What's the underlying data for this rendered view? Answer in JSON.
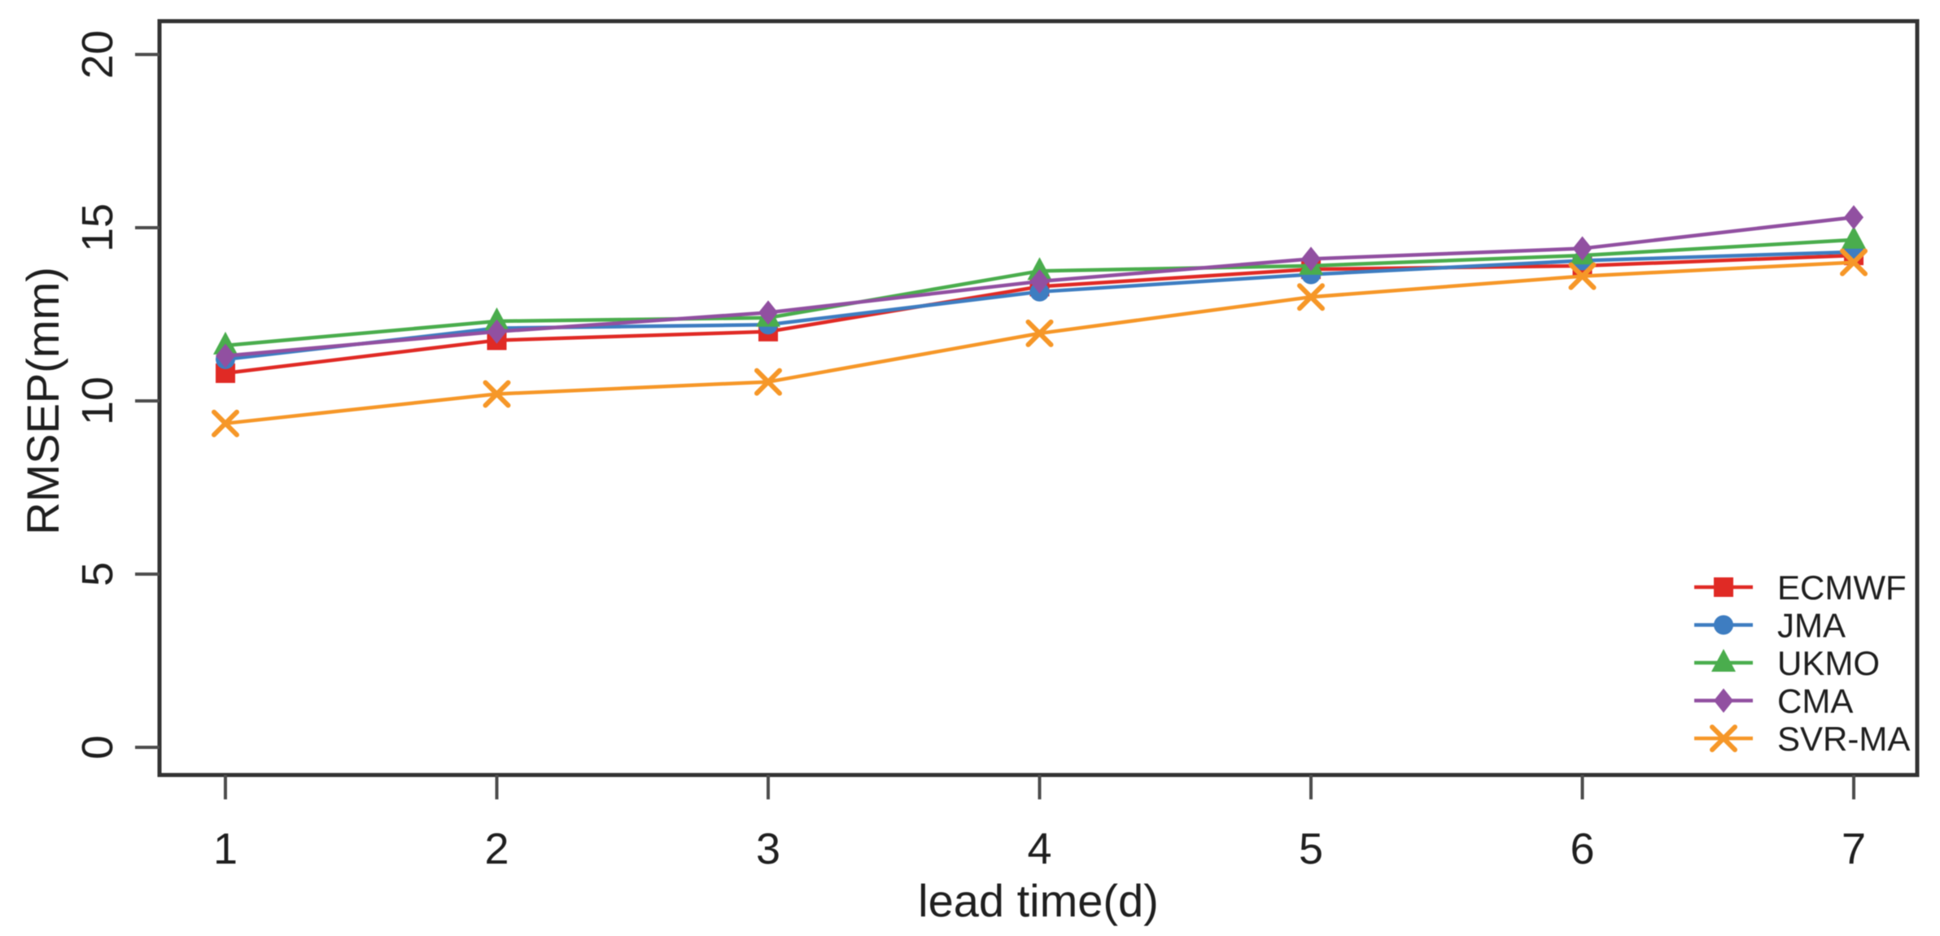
{
  "figure": {
    "background": "#ffffff",
    "axis_color": "#333333",
    "tick_color": "#4d4d4d",
    "text_color": "#1f1f1f"
  },
  "chart_data": {
    "type": "line",
    "title": "",
    "xlabel": "lead time(d)",
    "ylabel": "RMSEP(mm)",
    "x": [
      1,
      2,
      3,
      4,
      5,
      6,
      7
    ],
    "xtick_labels": [
      "1",
      "2",
      "3",
      "4",
      "5",
      "6",
      "7"
    ],
    "yticks": [
      0,
      5,
      10,
      15,
      20
    ],
    "ytick_labels": [
      "0",
      "5",
      "10",
      "15",
      "20"
    ],
    "xlim": [
      0.76,
      7.24
    ],
    "ylim": [
      -0.8,
      20.9
    ],
    "grid": false,
    "legend_position": "bottom-right",
    "series": [
      {
        "name": "ECMWF",
        "color": "#e02a25",
        "marker": "square",
        "values": [
          10.8,
          11.75,
          12.0,
          13.3,
          13.8,
          13.9,
          14.2
        ]
      },
      {
        "name": "JMA",
        "color": "#3e7dc1",
        "marker": "circle",
        "values": [
          11.2,
          12.1,
          12.2,
          13.15,
          13.65,
          14.05,
          14.3
        ]
      },
      {
        "name": "UKMO",
        "color": "#4aad4d",
        "marker": "triangle-up",
        "values": [
          11.6,
          12.3,
          12.4,
          13.75,
          13.9,
          14.2,
          14.65
        ]
      },
      {
        "name": "CMA",
        "color": "#9150a1",
        "marker": "diamond",
        "values": [
          11.3,
          12.0,
          12.55,
          13.45,
          14.1,
          14.4,
          15.3
        ]
      },
      {
        "name": "SVR-MA",
        "color": "#f69728",
        "marker": "x-cross",
        "values": [
          9.35,
          10.2,
          10.55,
          11.95,
          13.0,
          13.6,
          14.0
        ]
      }
    ]
  }
}
